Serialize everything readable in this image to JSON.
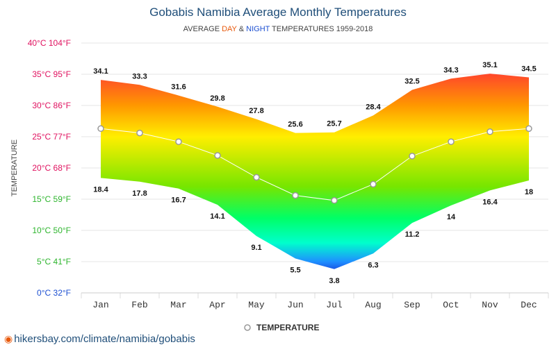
{
  "header": {
    "title": "Gobabis Namibia Average Monthly Temperatures",
    "subtitle_prefix": "AVERAGE ",
    "subtitle_day": "DAY",
    "subtitle_amp": " & ",
    "subtitle_night": "NIGHT",
    "subtitle_suffix": " TEMPERATURES 1959-2018"
  },
  "footer": {
    "source": "hikersbay.com/climate/namibia/gobabis"
  },
  "chart_data": {
    "type": "area",
    "title": "Gobabis Namibia Average Monthly Temperatures",
    "subtitle": "AVERAGE DAY & NIGHT TEMPERATURES 1959-2018",
    "ylabel": "TEMPERATURE",
    "ylim": [
      0,
      40
    ],
    "yticks": [
      {
        "value": 0,
        "label": "0°C 32°F",
        "color": "#1c4fd1"
      },
      {
        "value": 5,
        "label": "5°C 41°F",
        "color": "#2db52d"
      },
      {
        "value": 10,
        "label": "10°C 50°F",
        "color": "#2db52d"
      },
      {
        "value": 15,
        "label": "15°C 59°F",
        "color": "#2db52d"
      },
      {
        "value": 20,
        "label": "20°C 68°F",
        "color": "#e0115f"
      },
      {
        "value": 25,
        "label": "25°C 77°F",
        "color": "#e0115f"
      },
      {
        "value": 30,
        "label": "30°C 86°F",
        "color": "#e0115f"
      },
      {
        "value": 35,
        "label": "35°C 95°F",
        "color": "#e0115f"
      },
      {
        "value": 40,
        "label": "40°C 104°F",
        "color": "#e0115f"
      }
    ],
    "categories": [
      "Jan",
      "Feb",
      "Mar",
      "Apr",
      "May",
      "Jun",
      "Jul",
      "Aug",
      "Sep",
      "Oct",
      "Nov",
      "Dec"
    ],
    "series": [
      {
        "name": "DAY",
        "values": [
          34.1,
          33.3,
          31.6,
          29.8,
          27.8,
          25.6,
          25.7,
          28.4,
          32.5,
          34.3,
          35.1,
          34.5
        ]
      },
      {
        "name": "NIGHT",
        "values": [
          18.4,
          17.8,
          16.7,
          14.1,
          9.1,
          5.5,
          3.8,
          6.3,
          11.2,
          14,
          16.4,
          18
        ]
      },
      {
        "name": "TEMPERATURE",
        "values": [
          26.3,
          25.6,
          24.2,
          22.0,
          18.5,
          15.6,
          14.8,
          17.4,
          21.9,
          24.2,
          25.8,
          26.3
        ]
      }
    ],
    "legend": {
      "label": "TEMPERATURE",
      "position": "bottom"
    },
    "grid": true,
    "gradient": [
      {
        "value": 38,
        "color": "#ff1744"
      },
      {
        "value": 30,
        "color": "#ff9800"
      },
      {
        "value": 25,
        "color": "#ffee00"
      },
      {
        "value": 17,
        "color": "#76e600"
      },
      {
        "value": 12,
        "color": "#00ff66"
      },
      {
        "value": 8,
        "color": "#00ffcc"
      },
      {
        "value": 5,
        "color": "#1e90ff"
      },
      {
        "value": 3,
        "color": "#1a33d6"
      }
    ]
  }
}
